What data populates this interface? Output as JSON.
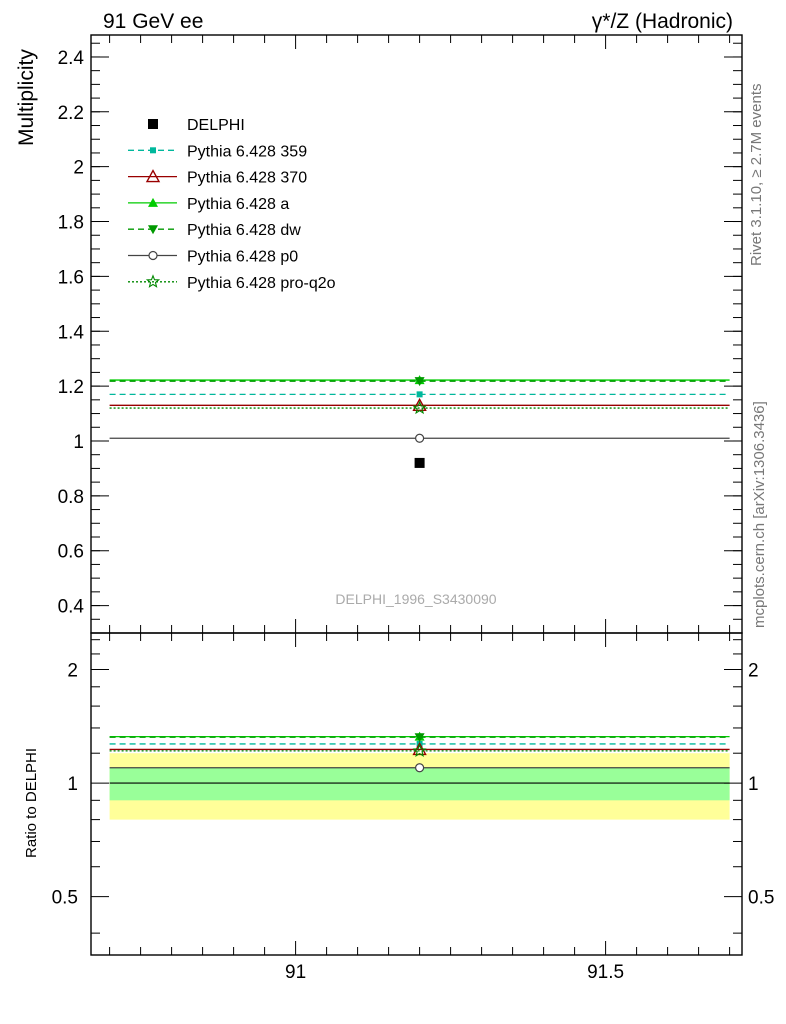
{
  "header": {
    "left_title": "91 GeV ee",
    "right_title": "γ*/Z (Hadronic)"
  },
  "side_labels": {
    "rivet": "Rivet 3.1.10, ≥ 2.7M events",
    "mcplots": "mcplots.cern.ch [arXiv:1306.3436]"
  },
  "analysis_id": "DELPHI_1996_S3430090",
  "colors": {
    "band_inner": "#99ff99",
    "band_outer": "#ffff99"
  },
  "chart_data": [
    {
      "type": "line",
      "panel": "main",
      "ylabel": "Multiplicity",
      "xlim": [
        90.67,
        91.72
      ],
      "ylim": [
        0.3,
        2.48
      ],
      "y_ticks": [
        "0.4",
        "0.6",
        "0.8",
        "1",
        "1.2",
        "1.4",
        "1.6",
        "1.8",
        "2",
        "2.2",
        "2.4"
      ],
      "x_range": [
        90.7,
        91.7
      ],
      "x_point": 91.2,
      "series": [
        {
          "name": "DELPHI",
          "value": 0.92,
          "color": "#000000",
          "style": "none",
          "marker": "square-filled"
        },
        {
          "name": "Pythia 6.428 359",
          "value": 1.17,
          "color": "#00b89c",
          "style": "dashed",
          "marker": "square-small"
        },
        {
          "name": "Pythia 6.428 370",
          "value": 1.13,
          "color": "#990000",
          "style": "solid",
          "marker": "triangle-open"
        },
        {
          "name": "Pythia 6.428 a",
          "value": 1.222,
          "color": "#00cc00",
          "style": "solid",
          "marker": "triangle-filled"
        },
        {
          "name": "Pythia 6.428 dw",
          "value": 1.218,
          "color": "#009900",
          "style": "dashed",
          "marker": "triangle-down-filled"
        },
        {
          "name": "Pythia 6.428 p0",
          "value": 1.01,
          "color": "#444444",
          "style": "solid",
          "marker": "circle-open"
        },
        {
          "name": "Pythia 6.428 pro-q2o",
          "value": 1.12,
          "color": "#008800",
          "style": "dotted",
          "marker": "star-open"
        }
      ]
    },
    {
      "type": "line",
      "panel": "ratio",
      "ylabel": "Ratio to DELPHI",
      "xlim": [
        90.67,
        91.72
      ],
      "ylim": [
        0.35,
        2.5
      ],
      "log_y": true,
      "y_ticks": [
        "0.5",
        "1",
        "2"
      ],
      "x_ticks": [
        "91",
        "91.5"
      ],
      "band_inner": [
        0.9,
        1.1
      ],
      "band_outer": [
        0.8,
        1.2
      ],
      "series": [
        {
          "name": "Pythia 6.428 359",
          "value": 1.27
        },
        {
          "name": "Pythia 6.428 370",
          "value": 1.228
        },
        {
          "name": "Pythia 6.428 a",
          "value": 1.328
        },
        {
          "name": "Pythia 6.428 dw",
          "value": 1.323
        },
        {
          "name": "Pythia 6.428 p0",
          "value": 1.098
        },
        {
          "name": "Pythia 6.428 pro-q2o",
          "value": 1.217
        }
      ]
    }
  ]
}
